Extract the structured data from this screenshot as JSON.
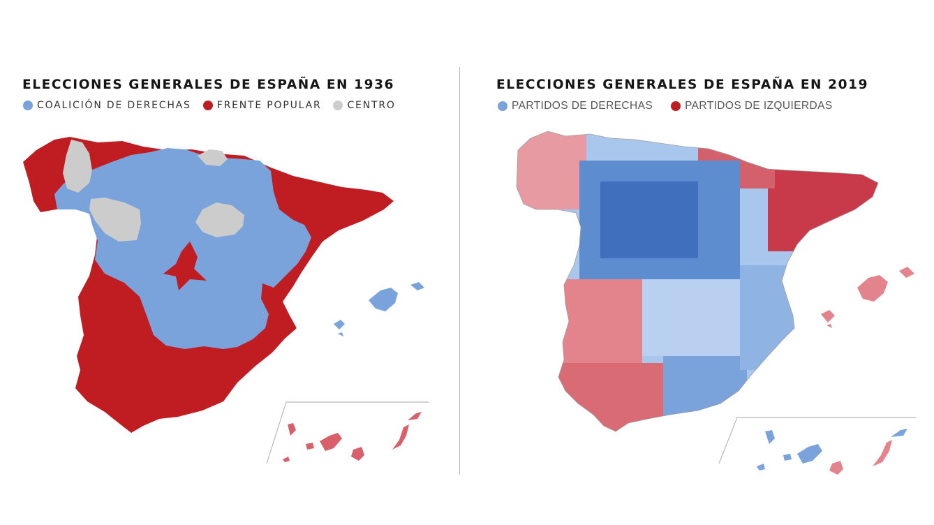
{
  "colors": {
    "right": "#7aa3dc",
    "left": "#c01d22",
    "center": "#cccccc",
    "right_dark": "#3f6fbd",
    "left_light": "#e3848d",
    "right_light": "#a9c6ec"
  },
  "maps": [
    {
      "title": "ELECCIONES GENERALES DE ESPAÑA EN 1936",
      "legend": [
        {
          "label": "COALICIÓN DE DERECHAS",
          "color": "#7aa3dc"
        },
        {
          "label": "FRENTE POPULAR",
          "color": "#c01d22"
        },
        {
          "label": "CENTRO",
          "color": "#cccccc"
        }
      ]
    },
    {
      "title": "ELECCIONES GENERALES DE ESPAÑA EN 2019",
      "legend": [
        {
          "label": "PARTIDOS DE DERECHAS",
          "color": "#7aa3dc"
        },
        {
          "label": "PARTIDOS DE IZQUIERDAS",
          "color": "#c01d22"
        }
      ]
    }
  ]
}
